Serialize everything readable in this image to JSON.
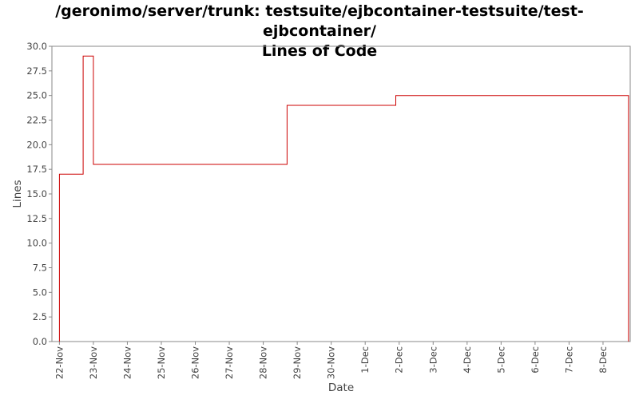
{
  "chart_data": {
    "type": "line",
    "title_line1": "/geronimo/server/trunk: testsuite/ejbcontainer-testsuite/test-ejbcontainer/",
    "title_line2": "Lines of Code",
    "xlabel": "Date",
    "ylabel": "Lines",
    "ylim": [
      0,
      30
    ],
    "yticks": [
      "0.0",
      "2.5",
      "5.0",
      "7.5",
      "10.0",
      "12.5",
      "15.0",
      "17.5",
      "20.0",
      "22.5",
      "25.0",
      "27.5",
      "30.0"
    ],
    "categories": [
      "22-Nov",
      "23-Nov",
      "24-Nov",
      "25-Nov",
      "26-Nov",
      "27-Nov",
      "28-Nov",
      "29-Nov",
      "30-Nov",
      "1-Dec",
      "2-Dec",
      "3-Dec",
      "4-Dec",
      "5-Dec",
      "6-Dec",
      "7-Dec",
      "8-Dec"
    ],
    "xlim": [
      21.78,
      38.8
    ],
    "grid": false,
    "legend": "none",
    "step": true,
    "line_color": "#cc0000",
    "series": [
      {
        "x": [
          22.0,
          22.7,
          23.0,
          28.7,
          31.9,
          38.75
        ],
        "values": [
          17,
          29,
          18,
          24,
          25,
          25
        ]
      }
    ],
    "end_value": 0
  }
}
